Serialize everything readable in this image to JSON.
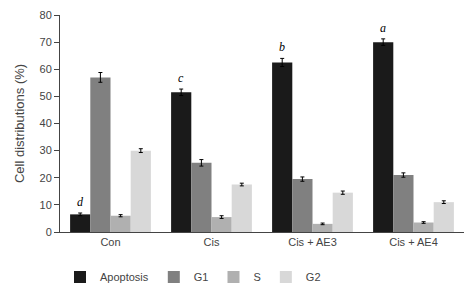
{
  "chart_data": {
    "type": "bar",
    "categories": [
      "Con",
      "Cis",
      "Cis + AE3",
      "Cis + AE4"
    ],
    "series": [
      {
        "name": "Apoptosis",
        "color": "#1a1a1a",
        "values": [
          6.5,
          51.5,
          62.5,
          70.0
        ],
        "errors": [
          0.5,
          1.2,
          1.5,
          1.2
        ]
      },
      {
        "name": "G1",
        "color": "#808080",
        "values": [
          57.0,
          25.5,
          19.5,
          21.0
        ],
        "errors": [
          1.8,
          1.2,
          0.8,
          0.8
        ]
      },
      {
        "name": "S",
        "color": "#b0b0b0",
        "values": [
          6.0,
          5.5,
          3.0,
          3.5
        ],
        "errors": [
          0.4,
          0.5,
          0.3,
          0.3
        ]
      },
      {
        "name": "G2",
        "color": "#d8d8d8",
        "values": [
          30.0,
          17.5,
          14.5,
          11.0
        ],
        "errors": [
          0.7,
          0.5,
          0.6,
          0.5
        ]
      }
    ],
    "annotations": [
      {
        "text": "d",
        "category": "Con",
        "series": "Apoptosis"
      },
      {
        "text": "c",
        "category": "Cis",
        "series": "Apoptosis"
      },
      {
        "text": "b",
        "category": "Cis + AE3",
        "series": "Apoptosis"
      },
      {
        "text": "a",
        "category": "Cis + AE4",
        "series": "Apoptosis"
      }
    ],
    "ylabel": "Cell distributions (%)",
    "ylim": [
      0,
      80
    ],
    "yticks": [
      0,
      10,
      20,
      30,
      40,
      50,
      60,
      70,
      80
    ],
    "grid": false,
    "legend": "bottom"
  }
}
